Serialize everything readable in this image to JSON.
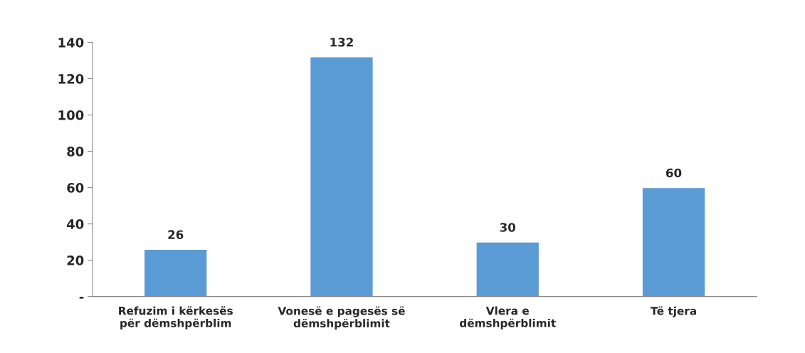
{
  "chart_data": {
    "type": "bar",
    "categories": [
      "Refuzim i kërkesës\npër dëmshpërblim",
      "Vonesë e pagesës së\ndëmshpërblimit",
      "Vlera e\ndëmshpërblimit",
      "Të tjera"
    ],
    "values": [
      26,
      132,
      30,
      60
    ],
    "color": "#5b9bd5",
    "ylim": [
      0,
      140
    ],
    "yticks": [
      {
        "value": 0,
        "label": "-"
      },
      20,
      40,
      60,
      80,
      100,
      120,
      140
    ],
    "data_labels": true,
    "grid": false
  }
}
